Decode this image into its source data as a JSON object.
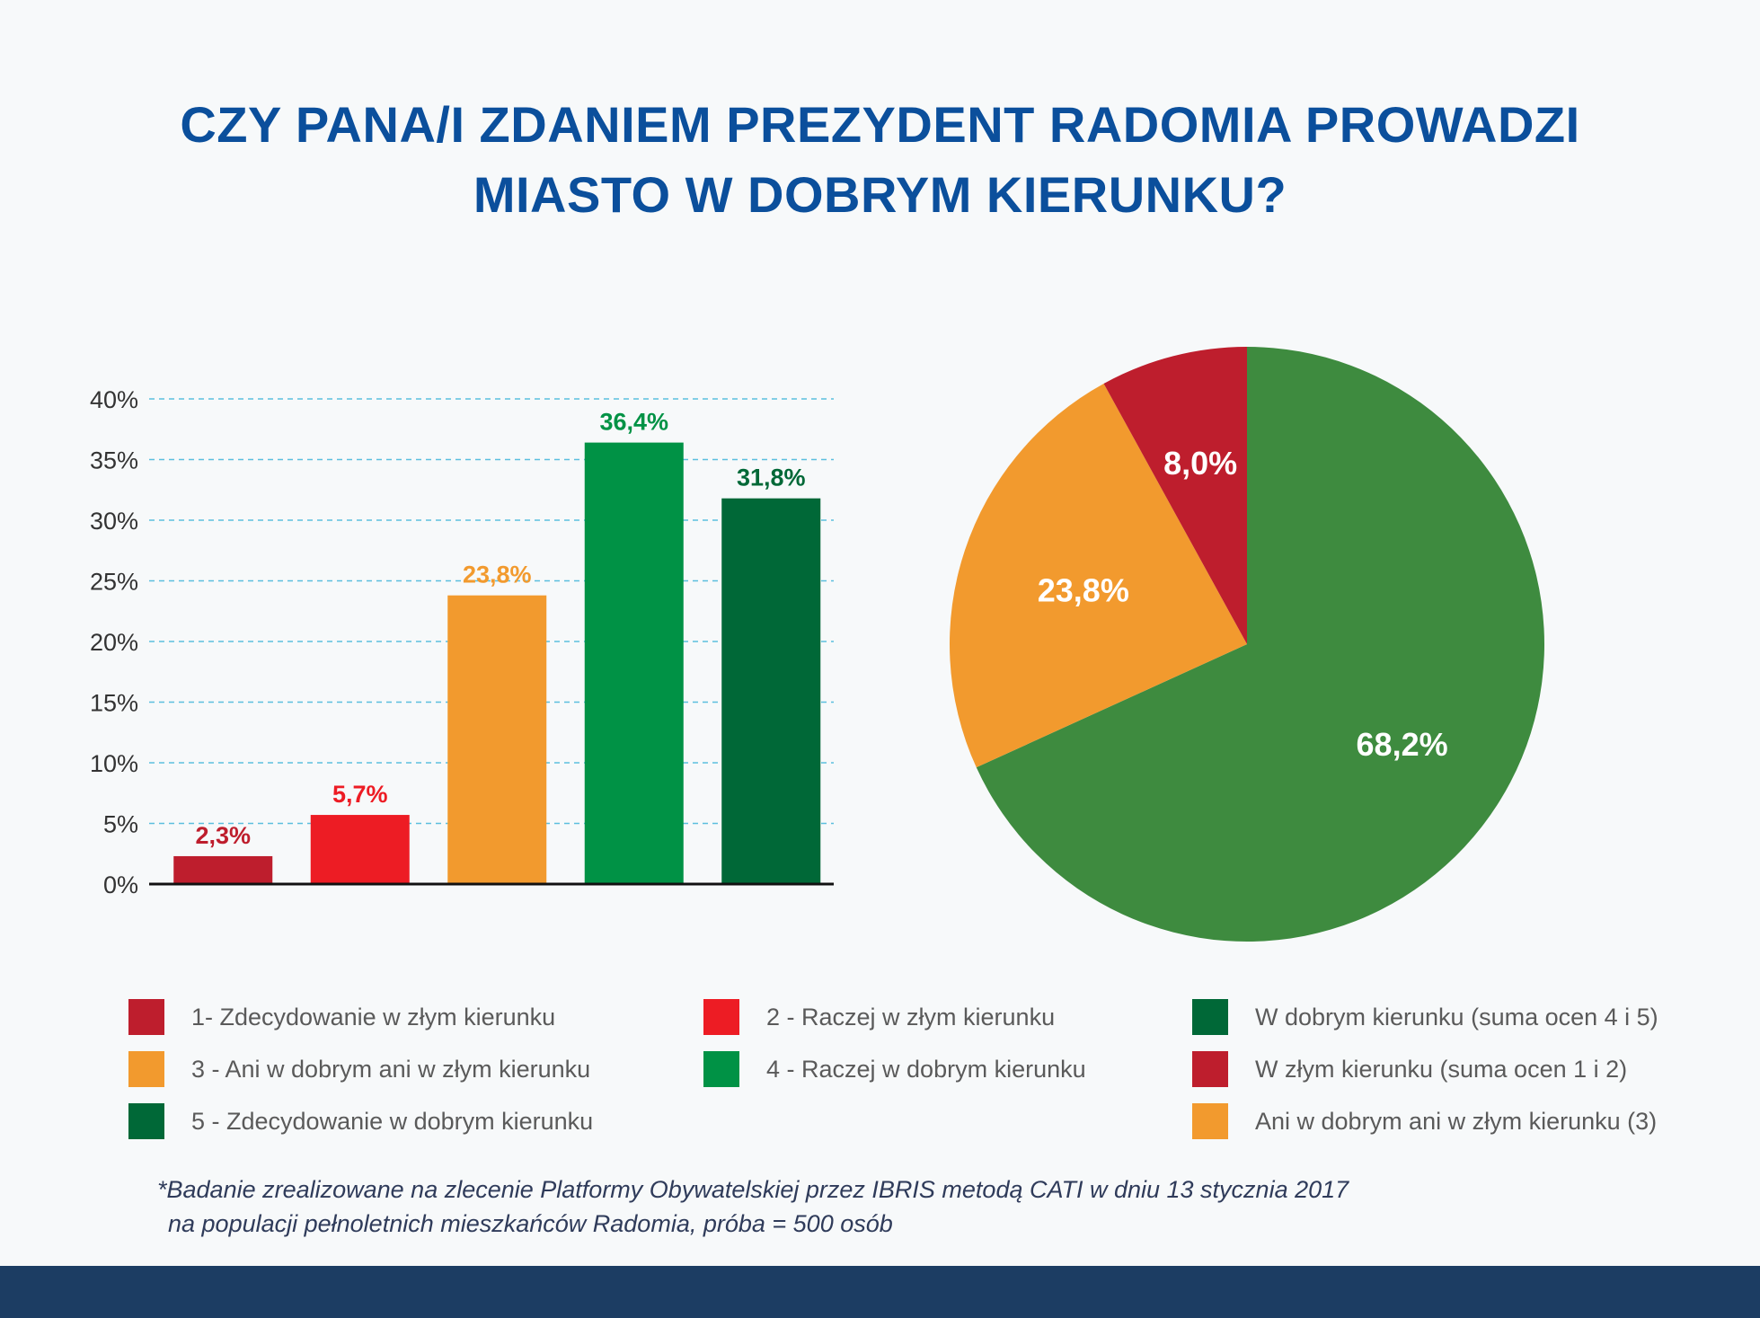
{
  "title": {
    "line1": "CZY PANA/I ZDANIEM PREZYDENT RADOMIA PROWADZI",
    "line2": "MIASTO W DOBRYM KIERUNKU?"
  },
  "chart_data": [
    {
      "type": "bar",
      "categories": [
        "1",
        "2",
        "3",
        "4",
        "5"
      ],
      "values": [
        2.3,
        5.7,
        23.8,
        36.4,
        31.8
      ],
      "value_labels": [
        "2,3%",
        "5,7%",
        "23,8%",
        "36,4%",
        "31,8%"
      ],
      "colors": [
        "#be1e2d",
        "#ed1c24",
        "#f29a2e",
        "#009245",
        "#006837"
      ],
      "ylim": [
        0,
        40
      ],
      "yticks": [
        0,
        5,
        10,
        15,
        20,
        25,
        30,
        35,
        40
      ],
      "ytick_labels": [
        "0%",
        "5%",
        "10%",
        "15%",
        "20%",
        "25%",
        "30%",
        "35%",
        "40%"
      ],
      "grid": true
    },
    {
      "type": "pie",
      "slices": [
        {
          "value": 68.2,
          "label": "68,2%",
          "color": "#3e8b3f"
        },
        {
          "value": 23.8,
          "label": "23,8%",
          "color": "#f29a2e"
        },
        {
          "value": 8.0,
          "label": "8,0%",
          "color": "#be1e2d"
        }
      ]
    }
  ],
  "legend": [
    {
      "label": "1- Zdecydowanie w złym kierunku",
      "color": "#be1e2d"
    },
    {
      "label": "2 - Raczej w złym kierunku",
      "color": "#ed1c24"
    },
    {
      "label": "W dobrym kierunku (suma ocen 4 i 5)",
      "color": "#006837"
    },
    {
      "label": "3 - Ani w dobrym ani w złym kierunku",
      "color": "#f29a2e"
    },
    {
      "label": "4 - Raczej w dobrym kierunku",
      "color": "#009245"
    },
    {
      "label": "W złym kierunku (suma ocen 1 i 2)",
      "color": "#be1e2d"
    },
    {
      "label": "5 - Zdecydowanie w dobrym kierunku",
      "color": "#006837"
    },
    {
      "label": "Ani w dobrym ani w złym kierunku (3)",
      "color": "#f29a2e"
    }
  ],
  "footnote": {
    "line1": "*Badanie zrealizowane na zlecenie Platformy Obywatelskiej przez IBRIS metodą CATI w dniu 13 stycznia 2017",
    "line2": "na populacji pełnoletnich mieszkańców Radomia, próba = 500 osób"
  },
  "colors": {
    "title": "#0b4f9c",
    "footer_bar": "#1c3d63",
    "grid": "#5bbfde"
  }
}
